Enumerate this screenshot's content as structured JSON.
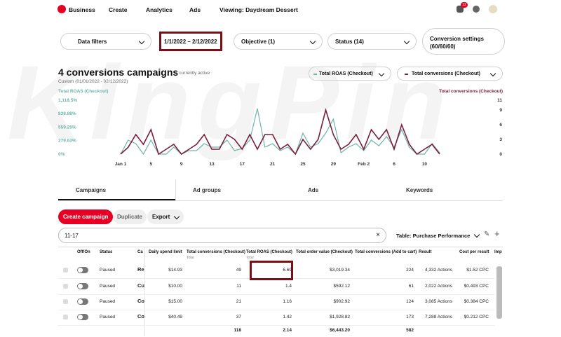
{
  "nav": {
    "items": [
      "Business",
      "Create",
      "Analytics",
      "Ads",
      "Viewing: Daydream Dessert"
    ],
    "badge": "12"
  },
  "filters": {
    "data_filters": "Data filters",
    "date_range": "1/1/2022 – 2/12/2022",
    "objective": "Objective (1)",
    "status": "Status (14)",
    "conversion_settings": "Conversion settings",
    "conversion_values": "(60/60/60)"
  },
  "header": {
    "title": "4 conversions campaigns",
    "active": "1 currently active",
    "date": "Custom (01/01/2022 - 02/12/2022)"
  },
  "chart_data": {
    "type": "line",
    "y_label": "Total ROAS (Checkout)",
    "y2_label": "Total conversions (Checkout)",
    "categories": [
      "Jan 1",
      null,
      null,
      null,
      "5",
      null,
      null,
      null,
      "9",
      null,
      null,
      null,
      "13",
      null,
      null,
      null,
      "17",
      null,
      null,
      null,
      "21",
      null,
      null,
      null,
      "25",
      null,
      null,
      null,
      "29",
      null,
      null,
      null,
      "Feb 2",
      null,
      null,
      null,
      "6",
      null,
      null,
      null,
      "10",
      null,
      null
    ],
    "series": [
      {
        "name": "Total ROAS (Checkout)",
        "color": "#6db5aa",
        "values": [
          0,
          290,
          218,
          0,
          290,
          0,
          0,
          145,
          0,
          73,
          73,
          218,
          145,
          145,
          290,
          73,
          116,
          290,
          945,
          145,
          218,
          73,
          145,
          0,
          436,
          145,
          218,
          436,
          726,
          29,
          145,
          218,
          73,
          290,
          174,
          363,
          145,
          509,
          145,
          0,
          0,
          218,
          29
        ]
      },
      {
        "name": "Total conversions (Checkout)",
        "color": "#7a1f3d",
        "axis": "y2",
        "values": [
          0,
          1.4,
          4,
          2,
          5,
          0,
          1,
          2,
          0,
          1,
          2,
          4,
          1,
          1,
          4,
          3,
          1,
          4,
          1,
          4,
          4,
          1,
          2,
          0,
          3,
          1,
          3,
          9,
          4,
          1,
          2,
          4,
          1,
          5,
          3,
          5,
          1,
          6,
          2,
          0,
          1,
          2,
          0
        ]
      }
    ],
    "ylim": [
      0,
      1118.5
    ],
    "yticks": [
      {
        "value": 0,
        "label": "0%"
      },
      {
        "value": 279.63,
        "label": "279.63%"
      },
      {
        "value": 559.25,
        "label": "559.25%"
      },
      {
        "value": 838.88,
        "label": "838.88%"
      },
      {
        "value": 1118.5,
        "label": "1,118.5%"
      }
    ],
    "y2lim": [
      0,
      11
    ],
    "y2ticks": [
      0,
      3,
      6,
      9,
      11
    ],
    "grid": false
  },
  "tabs": [
    "Campaigns",
    "Ad groups",
    "Ads",
    "Keywords"
  ],
  "toolbar": {
    "create": "Create campaign",
    "duplicate": "Duplicate",
    "export": "Export",
    "search": "11-17",
    "table_select": "Table: Purchase Performance"
  },
  "table": {
    "columns": [
      "Off/On",
      "Status",
      "Ca",
      "Daily spend limit",
      "Total conversions (Checkout)",
      "Total ROAS (Checkout)",
      "Total order value (Checkout)",
      "Total conversions (Add to cart)",
      "Result",
      "Cost per result",
      "Imp"
    ],
    "column_sub": "Total",
    "rows": [
      [
        "Paused",
        "Re",
        "$14.93",
        49,
        6.69,
        "$3,019.34",
        224,
        "4,332 Actions",
        "$1.52 CPC"
      ],
      [
        "Paused",
        "Cu",
        "$10.00",
        11,
        1.4,
        "$592.12",
        61,
        "2,022 Actions",
        "$0.493 CPC"
      ],
      [
        "Paused",
        "Co",
        "$15.00",
        21,
        1.16,
        "$902.92",
        124,
        "3,085 Actions",
        "$0.384 CPC"
      ],
      [
        "Paused",
        "Co",
        "$40.49",
        37,
        1.42,
        "$1,928.82",
        173,
        "7,288 Actions",
        "$0.212 CPC"
      ]
    ],
    "totals": [
      118,
      2.14,
      "$6,443.20",
      582
    ]
  },
  "watermark": "KingPin"
}
